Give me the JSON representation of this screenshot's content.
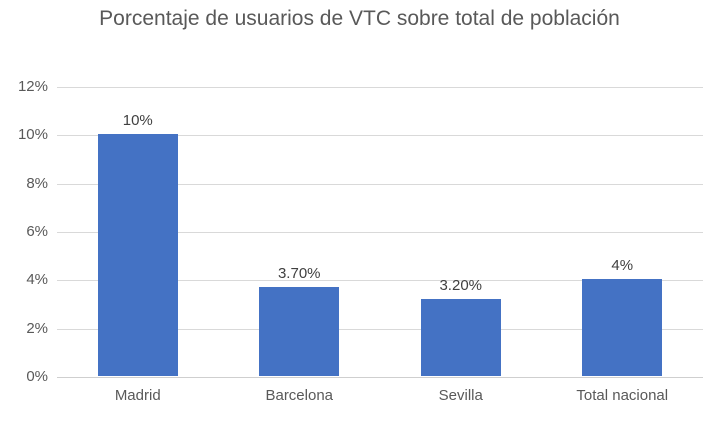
{
  "title": "Porcentaje de usuarios de VTC sobre total de población",
  "colors": {
    "bar": "#4472C4",
    "gridline": "#D9D9D9",
    "axis_line": "#CFCFCF",
    "title_text": "#595959",
    "tick_text": "#595959",
    "data_label_text": "#404040",
    "background": "#FFFFFF"
  },
  "chart_data": {
    "type": "bar",
    "title": "Porcentaje de usuarios de VTC sobre total de población",
    "categories": [
      "Madrid",
      "Barcelona",
      "Sevilla",
      "Total nacional"
    ],
    "values": [
      10,
      3.7,
      3.2,
      4
    ],
    "data_labels": [
      "10%",
      "3.70%",
      "3.20%",
      "4%"
    ],
    "y_ticks": [
      "0%",
      "2%",
      "4%",
      "6%",
      "8%",
      "10%",
      "12%"
    ],
    "y_tick_values": [
      0,
      2,
      4,
      6,
      8,
      10,
      12
    ],
    "ylim": [
      0,
      12
    ],
    "xlabel": "",
    "ylabel": "",
    "grid": true,
    "legend": false
  }
}
